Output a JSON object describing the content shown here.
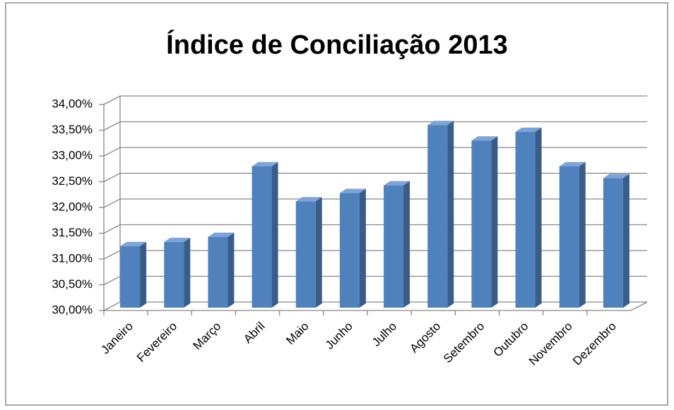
{
  "chart_data": {
    "type": "bar3d",
    "title": "Índice de Conciliação 2013",
    "categories": [
      "Janeiro",
      "Fevereiro",
      "Março",
      "Abril",
      "Maio",
      "Junho",
      "Julho",
      "Agosto",
      "Setembro",
      "Outubro",
      "Novembro",
      "Dezembro"
    ],
    "values": [
      31.25,
      31.33,
      31.43,
      32.8,
      32.12,
      32.28,
      32.43,
      33.6,
      33.3,
      33.47,
      32.8,
      32.57
    ],
    "color": "#4f81bd",
    "ylim": [
      30,
      34
    ],
    "yticks": [
      {
        "value": 30,
        "label": "30,00%"
      },
      {
        "value": 30.5,
        "label": "30,50%"
      },
      {
        "value": 31,
        "label": "31,00%"
      },
      {
        "value": 31.5,
        "label": "31,50%"
      },
      {
        "value": 32,
        "label": "32,00%"
      },
      {
        "value": 32.5,
        "label": "32,50%"
      },
      {
        "value": 33,
        "label": "33,00%"
      },
      {
        "value": 33.5,
        "label": "33,50%"
      },
      {
        "value": 34,
        "label": "34,00%"
      }
    ],
    "grid": true
  }
}
